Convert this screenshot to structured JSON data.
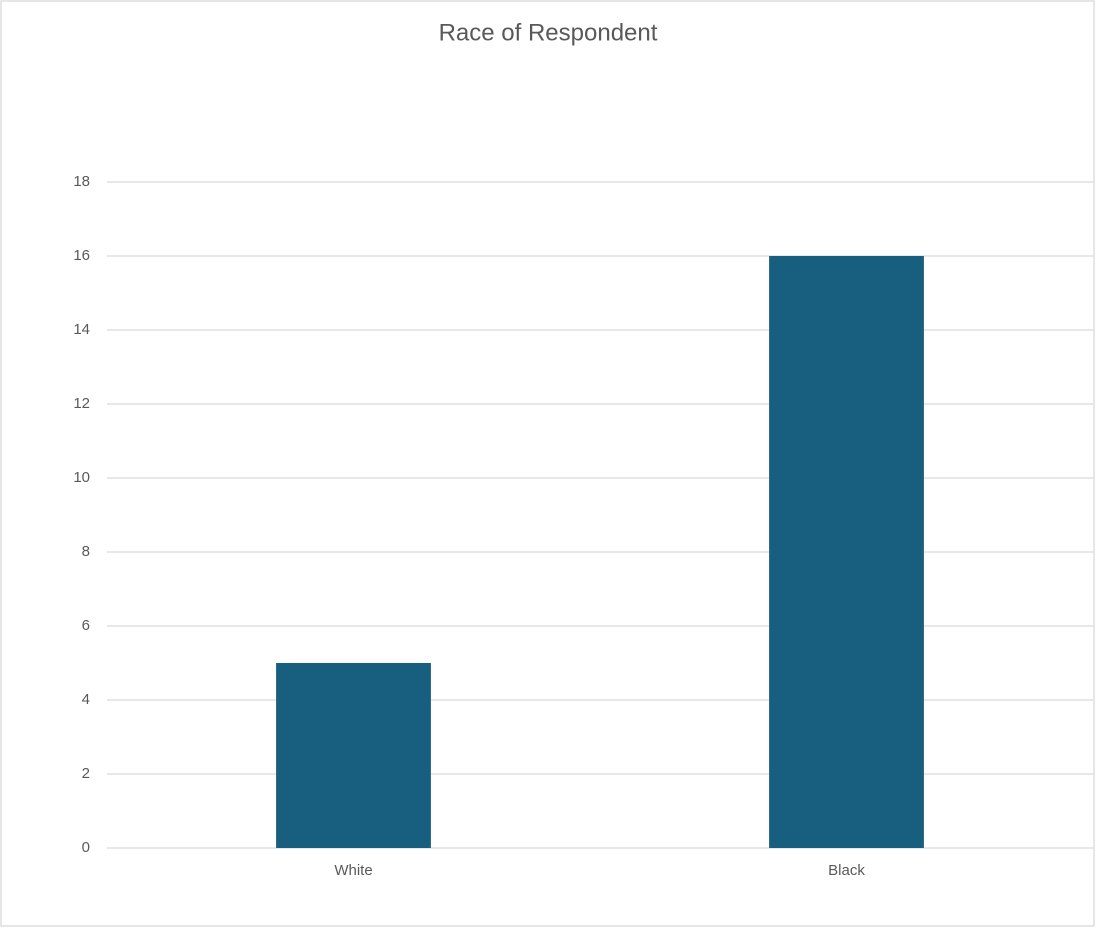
{
  "chart_data": {
    "type": "bar",
    "title": "Race of Respondent",
    "categories": [
      "White",
      "Black"
    ],
    "values": [
      5,
      16
    ],
    "color": "#175e7f",
    "ylim": [
      0,
      18
    ],
    "yticks": [
      0,
      2,
      4,
      6,
      8,
      10,
      12,
      14,
      16,
      18
    ],
    "grid": true
  }
}
